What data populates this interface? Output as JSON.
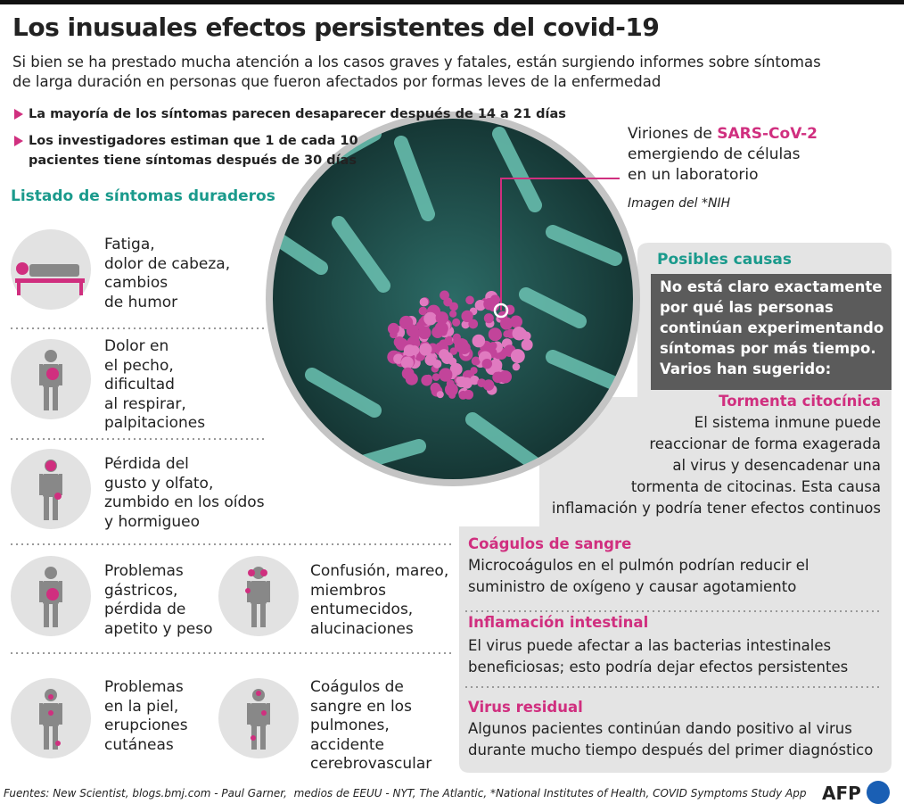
{
  "header": {
    "title": "Los inusuales efectos persistentes del covid-19",
    "subtitle": [
      "Si bien se ha prestado mucha atención a los casos graves y fatales, están surgiendo informes sobre síntomas",
      "de larga duración en personas que fueron afectados por formas leves de la enfermedad"
    ]
  },
  "bullets": [
    [
      "La mayoría de los síntomas parecen desaparecer después de 14 a 21 días"
    ],
    [
      "Los investigadores estiman que 1 de cada 10",
      "pacientes tiene síntomas después de 30 días"
    ]
  ],
  "image": {
    "caption_prefix": "Viriones de ",
    "caption_highlight": "SARS-CoV-2",
    "caption_lines": [
      "emergiendo de células",
      "en un laboratorio"
    ],
    "credit": "Imagen del *NIH"
  },
  "symptoms": {
    "title": "Listado de síntomas duraderos",
    "items": [
      [
        "Fatiga,",
        "dolor de cabeza,",
        "cambios",
        "de humor"
      ],
      [
        "Dolor en",
        "el pecho,",
        "dificultad",
        "al respirar,",
        "palpitaciones"
      ],
      [
        "Pérdida del",
        "gusto y olfato,",
        "zumbido en los oídos",
        "y hormigueo"
      ],
      [
        "Problemas",
        "gástricos,",
        "pérdida de",
        "apetito y peso"
      ],
      [
        "Confusión, mareo,",
        "miembros",
        "entumecidos,",
        "alucinaciones"
      ],
      [
        "Problemas",
        "en la piel,",
        "erupciones",
        "cutáneas"
      ],
      [
        "Coágulos de",
        "sangre en los",
        "pulmones,",
        "accidente",
        "cerebrovascular"
      ]
    ]
  },
  "causes": {
    "title": "Posibles causas",
    "intro": [
      "No está claro exactamente",
      "por qué las personas",
      "continúan experimentando",
      "síntomas por más tiempo.",
      "Varios han sugerido:"
    ],
    "items": [
      {
        "title": "Tormenta citocínica",
        "lines": [
          "El sistema inmune puede",
          "reaccionar de forma exagerada",
          "al virus y desencadenar una",
          "tormenta de citocinas. Esta causa",
          "inflamación y podría tener efectos continuos"
        ]
      },
      {
        "title": "Coágulos de sangre",
        "lines": [
          "Microcoágulos en el pulmón podrían reducir el",
          "suministro de oxígeno y causar agotamiento"
        ]
      },
      {
        "title": "Inflamación intestinal",
        "lines": [
          "El virus puede afectar a las bacterias intestinales",
          "beneficiosas; esto podría dejar efectos persistentes"
        ]
      },
      {
        "title": "Virus residual",
        "lines": [
          "Algunos pacientes continúan dando positivo al virus",
          "durante mucho tiempo después del primer diagnóstico"
        ]
      }
    ]
  },
  "footer": {
    "sources": "Fuentes: New Scientist, blogs.bmj.com - Paul Garner,  medios de EEUU - NYT, The Atlantic, *National Institutes of Health, COVID Symptoms Study App",
    "logo": "AFP"
  }
}
